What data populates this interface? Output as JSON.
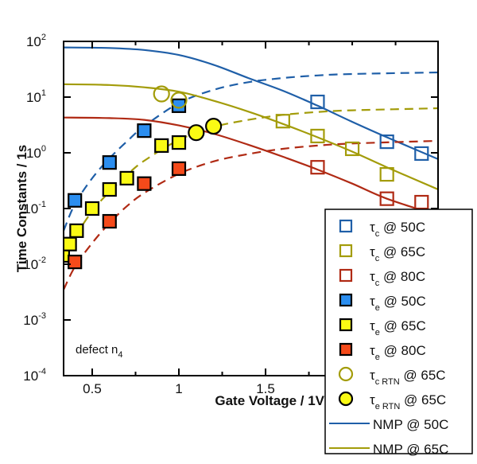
{
  "chart_data": {
    "type": "scatter",
    "title": "",
    "xlabel": "Gate Voltage / 1V",
    "ylabel": "Time Constants / 1s",
    "xscale": "linear",
    "yscale": "log",
    "xlim": [
      0.335,
      2.495
    ],
    "ylim": [
      0.0001,
      100
    ],
    "x_ticks": [
      {
        "value": 0.5,
        "label": "0.5"
      },
      {
        "value": 1,
        "label": "1"
      },
      {
        "value": 1.5,
        "label": "1.5"
      }
    ],
    "x_minor_ticks": [
      0.75,
      1.25,
      1.75,
      2.0,
      2.25
    ],
    "y_ticks": [
      {
        "value": 100,
        "base": "10",
        "exp": "2"
      },
      {
        "value": 10,
        "base": "10",
        "exp": "1"
      },
      {
        "value": 1,
        "base": "10",
        "exp": "0"
      },
      {
        "value": 0.1,
        "base": "10",
        "exp": "-1"
      },
      {
        "value": 0.01,
        "base": "10",
        "exp": "-2"
      },
      {
        "value": 0.001,
        "base": "10",
        "exp": "-3"
      },
      {
        "value": 0.0001,
        "base": "10",
        "exp": "-4"
      }
    ],
    "grid": false,
    "legend_position": "bottom-right",
    "annotation": {
      "text": "defect n",
      "sub": "4",
      "position": "bottom-left"
    },
    "colors": {
      "blue": "#1f5fa8",
      "olive": "#a39c0a",
      "red": "#b02a14",
      "fill_blue": "#2b8ef0",
      "fill_yellow": "#fafa14",
      "fill_red": "#f54a1a"
    },
    "series": [
      {
        "name": "τc @ 50C",
        "sym": "τ",
        "sub": "c",
        "label": " @ 50C",
        "marker": "square-open",
        "color": "#1f5fa8",
        "x": [
          1.8,
          2.2,
          2.4
        ],
        "y": [
          8.2,
          1.58,
          0.97
        ]
      },
      {
        "name": "τc @ 65C",
        "sym": "τ",
        "sub": "c",
        "label": " @ 65C",
        "marker": "square-open",
        "color": "#a39c0a",
        "x": [
          1.6,
          1.8,
          2.0,
          2.2,
          2.4
        ],
        "y": [
          3.7,
          2.0,
          1.18,
          0.41,
          0.0
        ]
      },
      {
        "name": "τc @ 80C",
        "sym": "τ",
        "sub": "c",
        "label": " @ 80C",
        "marker": "square-open",
        "color": "#b02a14",
        "x": [
          1.8,
          2.2,
          2.4
        ],
        "y": [
          0.55,
          0.15,
          0.13
        ]
      },
      {
        "name": "τe @ 50C",
        "sym": "τ",
        "sub": "e",
        "label": " @ 50C",
        "marker": "square-filled",
        "color": "#2b8ef0",
        "x": [
          0.4,
          0.6,
          0.8,
          1.0
        ],
        "y": [
          0.14,
          0.67,
          2.5,
          7.0
        ]
      },
      {
        "name": "τe @ 65C",
        "sym": "τ",
        "sub": "e",
        "label": " @ 65C",
        "marker": "square-filled",
        "color": "#fafa14",
        "x": [
          0.33,
          0.37,
          0.41,
          0.5,
          0.6,
          0.7,
          0.9,
          1.0
        ],
        "y": [
          0.0144,
          0.023,
          0.04,
          0.1,
          0.22,
          0.35,
          1.35,
          1.53
        ]
      },
      {
        "name": "τe @ 80C",
        "sym": "τ",
        "sub": "e",
        "label": " @ 80C",
        "marker": "square-filled",
        "color": "#f54a1a",
        "x": [
          0.4,
          0.6,
          0.8,
          1.0
        ],
        "y": [
          0.011,
          0.059,
          0.28,
          0.52
        ]
      },
      {
        "name": "τc RTN @ 65C",
        "sym": "τ",
        "sub": "c RTN",
        "label": " @ 65C",
        "marker": "circle-open",
        "color": "#a39c0a",
        "x": [
          0.9,
          1.0
        ],
        "y": [
          11.4,
          8.8
        ]
      },
      {
        "name": "τe RTN @ 65C",
        "sym": "τ",
        "sub": "e RTN",
        "label": " @ 65C",
        "marker": "circle-filled",
        "color": "#fafa14",
        "x": [
          1.1,
          1.2
        ],
        "y": [
          2.3,
          3.0
        ]
      },
      {
        "name": "NMP @ 50C",
        "sym": "",
        "sub": "",
        "label": "NMP @ 50C",
        "marker": "line",
        "color": "#1f5fa8",
        "curves": {
          "capture": {
            "x": [
              0.335,
              0.6,
              0.8,
              1.0,
              1.2,
              1.4,
              1.6,
              1.8,
              2.0,
              2.2,
              2.495
            ],
            "y": [
              78,
              76,
              70,
              57,
              38,
              22,
              13,
              7.0,
              3.6,
              1.9,
              0.77
            ]
          },
          "emission": {
            "x": [
              0.335,
              0.4,
              0.5,
              0.6,
              0.7,
              0.8,
              1.0,
              1.2,
              1.4,
              1.6,
              1.8,
              2.0,
              2.495
            ],
            "y": [
              0.04,
              0.12,
              0.35,
              0.8,
              1.6,
              3.0,
              7.8,
              13.5,
              18.5,
              22,
              24.5,
              26,
              27.7
            ]
          }
        }
      },
      {
        "name": "NMP @ 65C",
        "sym": "",
        "sub": "",
        "label": "NMP @ 65C",
        "marker": "line",
        "color": "#a39c0a",
        "curves": {
          "capture": {
            "x": [
              0.335,
              0.6,
              0.8,
              1.0,
              1.2,
              1.4,
              1.6,
              1.8,
              2.0,
              2.2,
              2.495
            ],
            "y": [
              17,
              16.5,
              15,
              12.5,
              8.6,
              5.5,
              3.3,
              1.9,
              1.05,
              0.55,
              0.22
            ]
          },
          "emission": {
            "x": [
              0.335,
              0.4,
              0.5,
              0.6,
              0.7,
              0.8,
              1.0,
              1.2,
              1.4,
              1.6,
              1.8,
              2.0,
              2.495
            ],
            "y": [
              0.011,
              0.03,
              0.09,
              0.2,
              0.4,
              0.72,
              1.7,
              2.9,
              3.9,
              4.8,
              5.4,
              5.8,
              6.3
            ]
          }
        }
      },
      {
        "name": "NMP @ 80C",
        "sym": "",
        "sub": "",
        "label": "NMP @ 80C",
        "marker": "line",
        "color": "#b02a14",
        "curves": {
          "capture": {
            "x": [
              0.335,
              0.6,
              0.8,
              1.0,
              1.2,
              1.4,
              1.6,
              1.8,
              2.0,
              2.2,
              2.495
            ],
            "y": [
              4.3,
              4.2,
              3.9,
              3.1,
              2.2,
              1.4,
              0.85,
              0.5,
              0.28,
              0.15,
              0.075
            ]
          },
          "emission": {
            "x": [
              0.335,
              0.4,
              0.5,
              0.6,
              0.7,
              0.8,
              1.0,
              1.2,
              1.4,
              1.6,
              1.8,
              2.0,
              2.495
            ],
            "y": [
              0.0035,
              0.009,
              0.024,
              0.055,
              0.11,
              0.19,
              0.42,
              0.7,
              0.95,
              1.18,
              1.35,
              1.47,
              1.64
            ]
          }
        }
      }
    ]
  }
}
